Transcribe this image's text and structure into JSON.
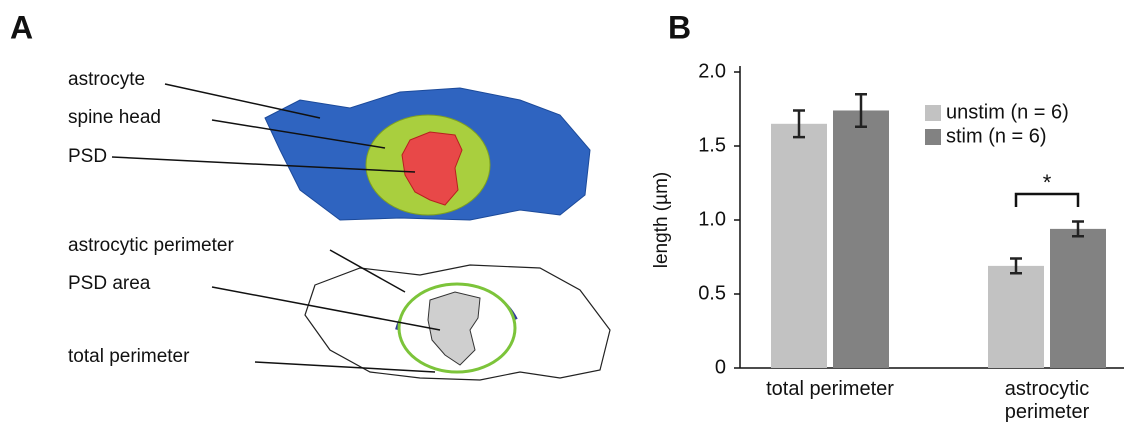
{
  "panel_labels": [
    "A",
    "B"
  ],
  "diagram": {
    "labels": [
      "astrocyte",
      "spine head",
      "PSD",
      "astrocytic perimeter",
      "PSD area",
      "total perimeter"
    ]
  },
  "chart_data": {
    "type": "bar",
    "y_label": "length (µm)",
    "categories": [
      "total perimeter",
      "astrocytic perimeter"
    ],
    "series": [
      {
        "name": "unstim (n = 6)",
        "color": "#c2c2c2",
        "values": [
          1.65,
          0.69
        ],
        "errors": [
          0.09,
          0.05
        ]
      },
      {
        "name": "stim (n = 6)",
        "color": "#828282",
        "values": [
          1.74,
          0.94
        ],
        "errors": [
          0.11,
          0.05
        ]
      }
    ],
    "ylim": [
      0,
      2
    ],
    "yticks": [
      0,
      0.5,
      {
        "value": 1,
        "label": "1.0"
      },
      1.5,
      {
        "value": 2,
        "label": "2.0"
      }
    ],
    "significance": "*",
    "legend": "upper-right"
  }
}
